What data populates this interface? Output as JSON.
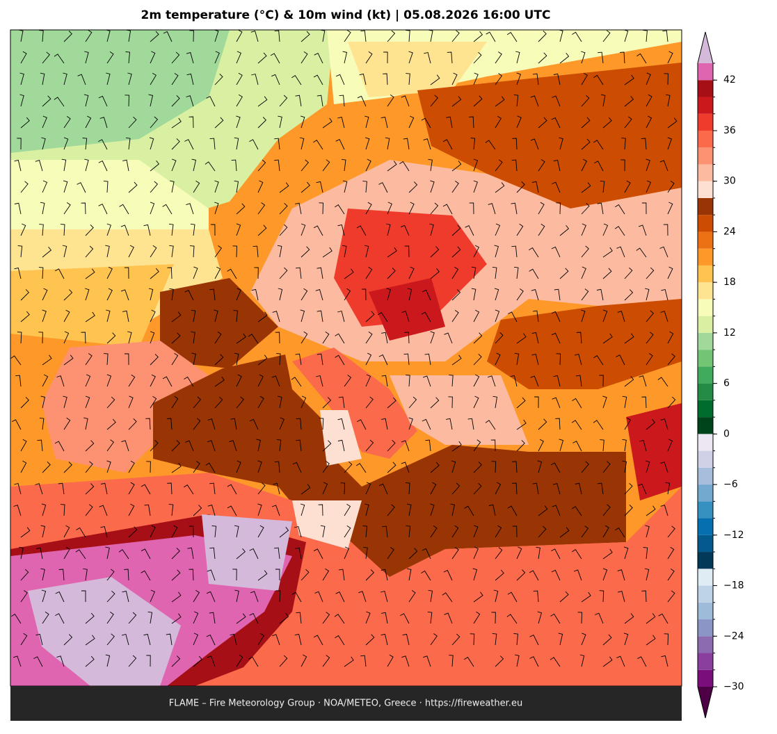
{
  "title": "2m temperature (°C) & 10m wind (kt)  |  05.08.2026 16:00 UTC",
  "footer": "FLAME – Fire Meteorology Group · NOA/METEO, Greece · https://fireweather.eu",
  "colorbar": {
    "lim": [
      -30,
      44
    ],
    "ticks": [
      -30,
      -24,
      -18,
      -12,
      -6,
      0,
      6,
      12,
      18,
      24,
      30,
      36,
      42
    ],
    "tick_labels": [
      "−30",
      "−24",
      "−18",
      "−12",
      "−6",
      "0",
      "6",
      "12",
      "18",
      "24",
      "30",
      "36",
      "42"
    ],
    "levels": [
      -30,
      -28,
      -26,
      -24,
      -22,
      -20,
      -18,
      -16,
      -14,
      -12,
      -10,
      -8,
      -6,
      -4,
      -2,
      0,
      2,
      4,
      6,
      8,
      10,
      12,
      14,
      16,
      18,
      20,
      22,
      24,
      26,
      28,
      30,
      32,
      34,
      36,
      38,
      40,
      42,
      44
    ],
    "colors": [
      "#7a0f7c",
      "#8a3f9f",
      "#8c6bb1",
      "#8c96c6",
      "#9ebcda",
      "#bfd3e6",
      "#e0ecf4",
      "#023858",
      "#045a8d",
      "#0570b0",
      "#3690c0",
      "#74a9cf",
      "#a6bddb",
      "#d0d1e6",
      "#ece7f2",
      "#00441b",
      "#006d2c",
      "#238b45",
      "#41ab5d",
      "#74c476",
      "#a1d99b",
      "#d9f0a3",
      "#f7fcb9",
      "#fee391",
      "#fec44f",
      "#fe9929",
      "#ec7014",
      "#cc4c02",
      "#993404",
      "#fee0d2",
      "#fcbba1",
      "#fc9272",
      "#fb6a4a",
      "#ef3b2c",
      "#cb181d",
      "#a50f15",
      "#df65b0"
    ],
    "under_color": "#4d0045",
    "over_color": "#d4b9da"
  }
}
